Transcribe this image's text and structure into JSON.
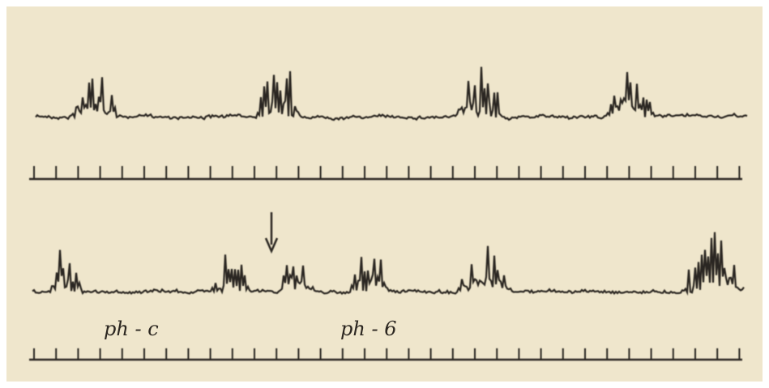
{
  "figure": {
    "labels": [
      "ph - c",
      "ph - 6"
    ]
  }
}
